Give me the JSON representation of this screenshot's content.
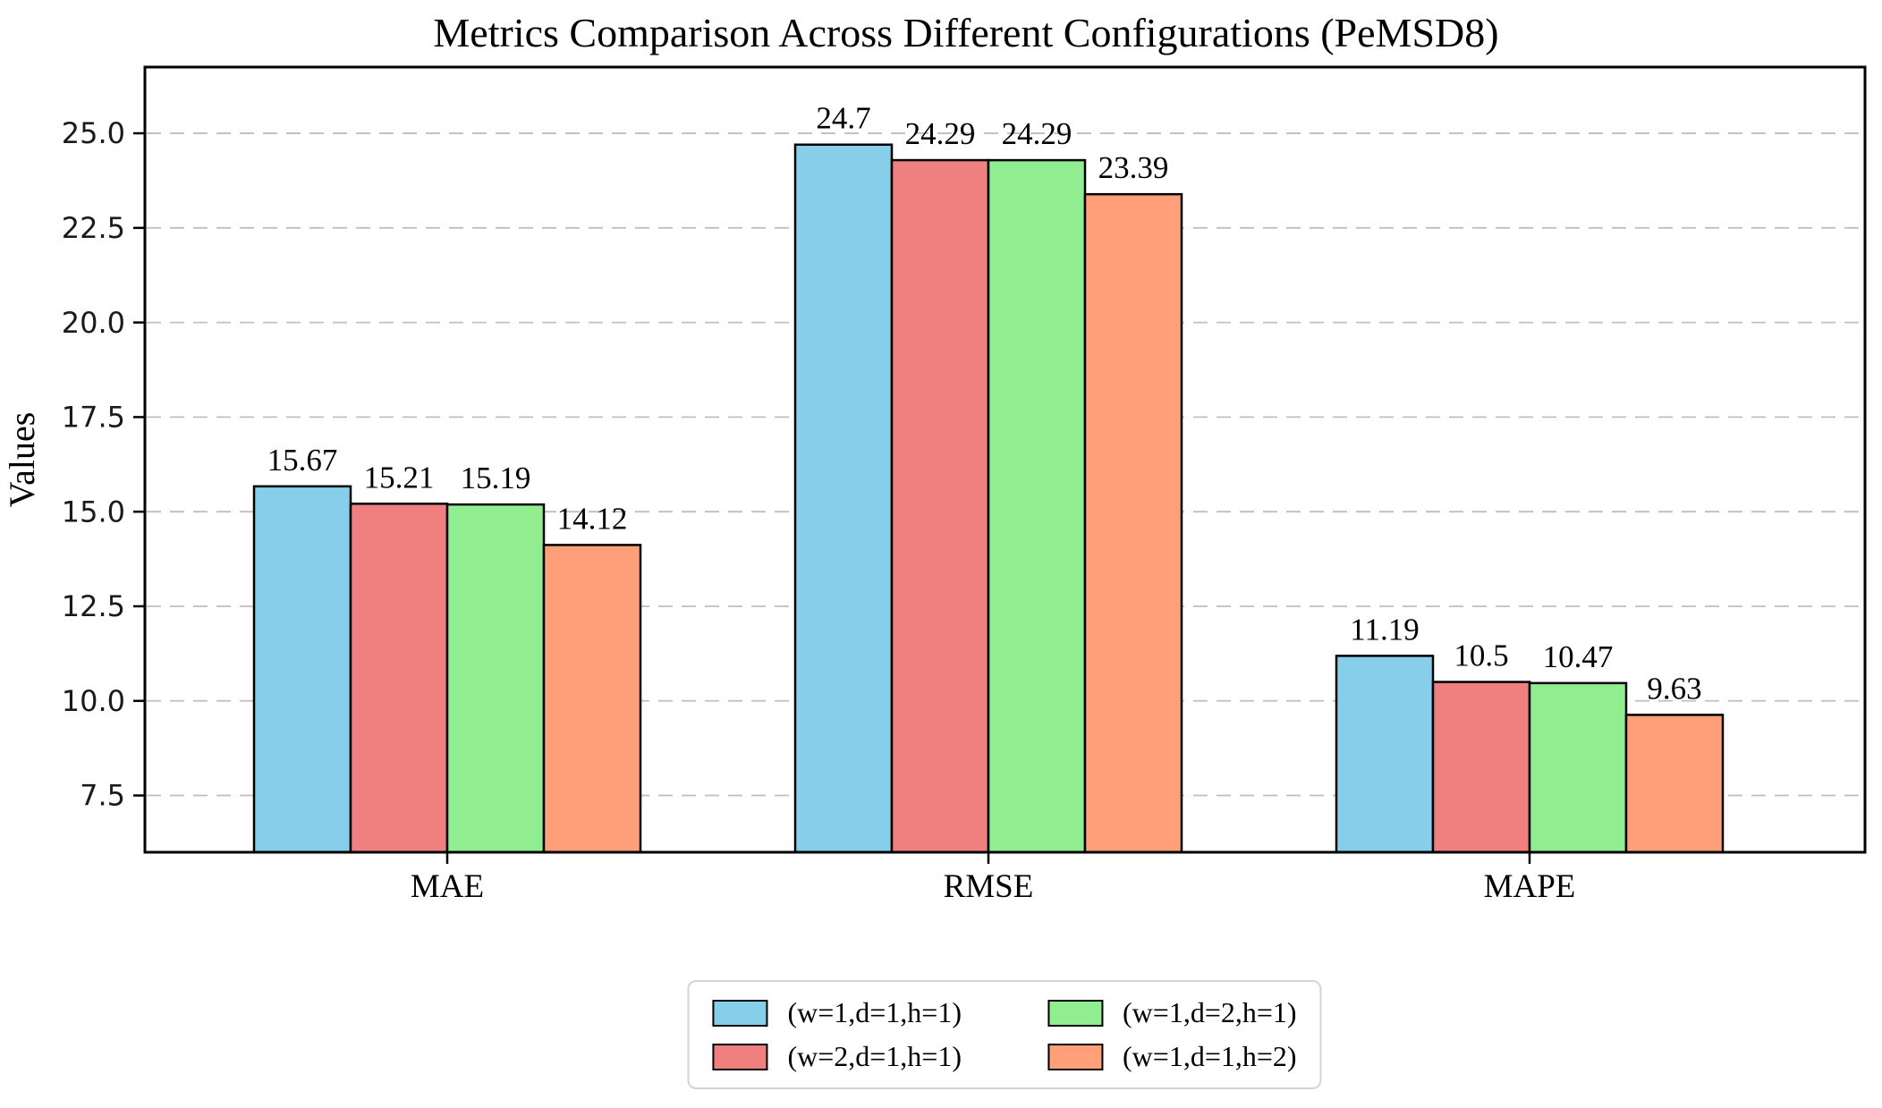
{
  "chart_data": {
    "type": "bar",
    "title": "Metrics Comparison Across Different Configurations (PeMSD8)",
    "ylabel": "Values",
    "xlabel": "",
    "categories": [
      "MAE",
      "RMSE",
      "MAPE"
    ],
    "series": [
      {
        "name": "(w=1,d=1,h=1)",
        "color": "#87CEEB",
        "values": [
          15.67,
          24.7,
          11.19
        ]
      },
      {
        "name": "(w=2,d=1,h=1)",
        "color": "#F08080",
        "values": [
          15.21,
          24.29,
          10.5
        ]
      },
      {
        "name": "(w=1,d=2,h=1)",
        "color": "#90EE90",
        "values": [
          15.19,
          24.29,
          10.47
        ]
      },
      {
        "name": "(w=1,d=1,h=2)",
        "color": "#FFA07A",
        "values": [
          14.12,
          23.39,
          9.63
        ]
      }
    ],
    "bar_value_labels": [
      [
        "15.67",
        "24.7",
        "11.19"
      ],
      [
        "15.21",
        "24.29",
        "10.5"
      ],
      [
        "15.19",
        "24.29",
        "10.47"
      ],
      [
        "14.12",
        "23.39",
        "9.63"
      ]
    ],
    "yticks": [
      7.5,
      10.0,
      12.5,
      15.0,
      17.5,
      20.0,
      22.5,
      25.0
    ],
    "ytick_labels": [
      "7.5",
      "10.0",
      "12.5",
      "15.0",
      "17.5",
      "20.0",
      "22.5",
      "25.0"
    ],
    "ylim": [
      6.0,
      26.75
    ],
    "grid": "horizontal-dashed",
    "gridline_color": "#bfbfbf",
    "bar_edge_color": "#000000",
    "legend_position": "below-center-2-columns",
    "legend_entries": [
      "(w=1,d=1,h=1)",
      "(w=2,d=1,h=1)",
      "(w=1,d=2,h=1)",
      "(w=1,d=1,h=2)"
    ]
  }
}
